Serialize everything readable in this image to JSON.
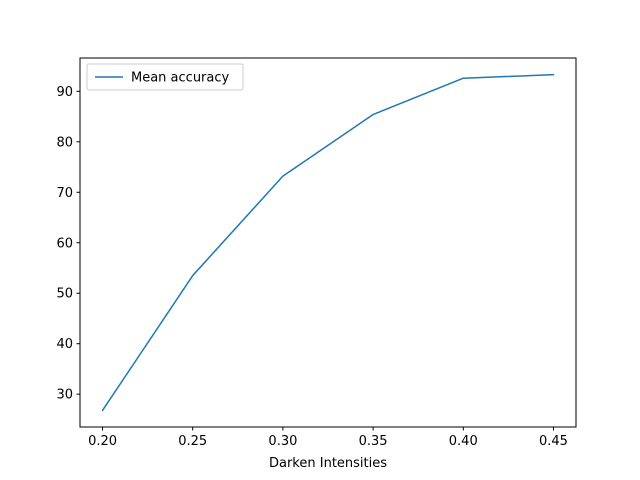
{
  "chart_data": {
    "type": "line",
    "title": "",
    "xlabel": "Darken Intensities",
    "ylabel": "",
    "x": [
      0.2,
      0.25,
      0.3,
      0.35,
      0.4,
      0.45
    ],
    "series": [
      {
        "name": "Mean accuracy",
        "color": "#1f77b4",
        "values": [
          26.8,
          53.5,
          73.2,
          85.4,
          92.6,
          93.3
        ]
      }
    ],
    "x_ticks": [
      "0.20",
      "0.25",
      "0.30",
      "0.35",
      "0.40",
      "0.45"
    ],
    "y_ticks": [
      "30",
      "40",
      "50",
      "60",
      "70",
      "80",
      "90"
    ],
    "xlim": [
      0.1875,
      0.4625
    ],
    "ylim": [
      23.5,
      96.6
    ],
    "grid": false,
    "legend_position": "upper left"
  }
}
